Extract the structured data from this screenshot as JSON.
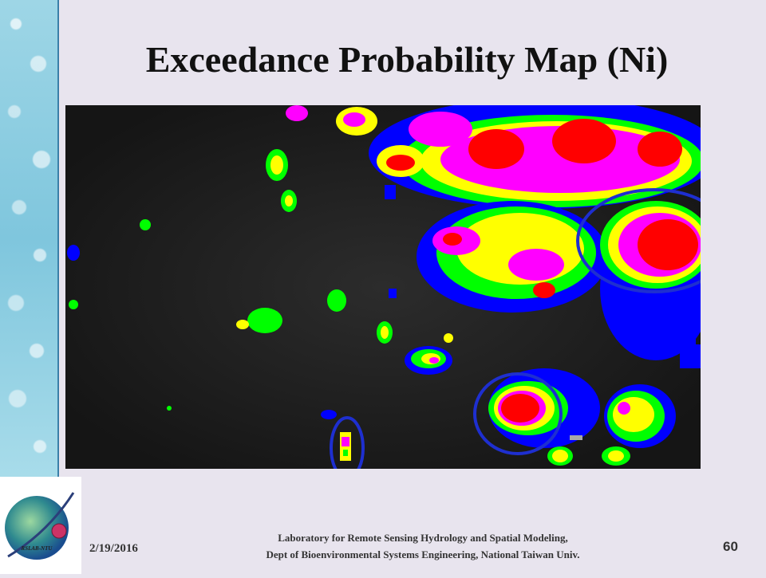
{
  "slide": {
    "title": "Exceedance Probability Map (Ni)",
    "date": "2/19/2016",
    "credit_line1": "Laboratory for Remote Sensing Hydrology and Spatial Modeling,",
    "credit_line2": "Dept of Bioenvironmental Systems Engineering, National Taiwan Univ.",
    "page_number": "60",
    "logo_text": "RSLAB-NTU"
  },
  "colors": {
    "background": "#e8e4ee",
    "map_base": "#202020",
    "level_blue": "#0000ff",
    "level_green": "#00ff00",
    "level_yellow": "#ffff00",
    "level_magenta": "#ff00ff",
    "level_red": "#ff0000",
    "circle_annotation": "#1e2fd0"
  }
}
